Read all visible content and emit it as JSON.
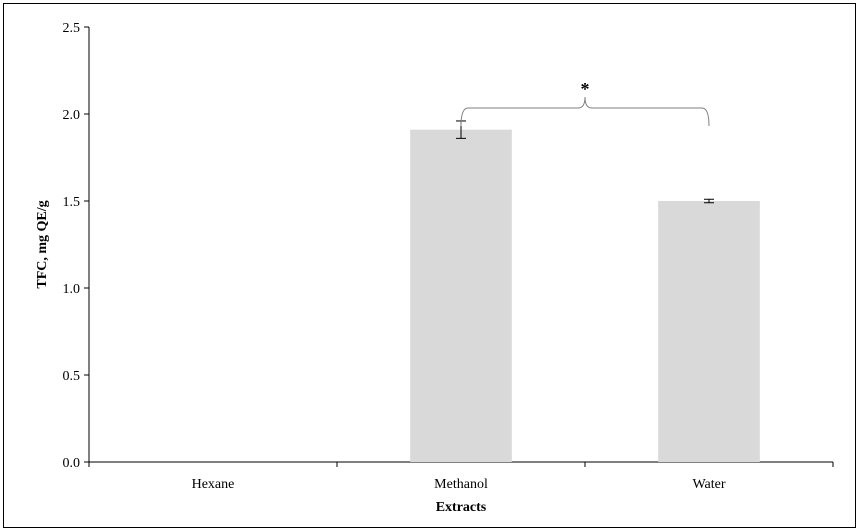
{
  "chart_data": {
    "type": "bar",
    "title": "",
    "xlabel": "Extracts",
    "ylabel": "TFC, mg QE/g",
    "categories": [
      "Hexane",
      "Methanol",
      "Water"
    ],
    "values": [
      0,
      1.91,
      1.5
    ],
    "error": [
      0,
      0.05,
      0.01
    ],
    "ylim": [
      0,
      2.5
    ],
    "yticks": [
      "0.0",
      "0.5",
      "1.0",
      "1.5",
      "2.0",
      "2.5"
    ],
    "ytick_values": [
      0,
      0.5,
      1.0,
      1.5,
      2.0,
      2.5
    ],
    "grid": false,
    "legend": "none",
    "bar_color": "#d9d9d9",
    "annotations": [
      {
        "text": "*",
        "between": [
          "Methanol",
          "Water"
        ]
      }
    ]
  }
}
